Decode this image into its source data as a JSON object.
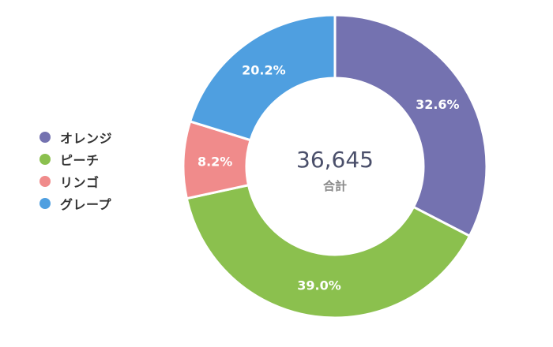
{
  "chart_data": {
    "type": "pie",
    "style": "donut",
    "categories": [
      "オレンジ",
      "ピーチ",
      "リンゴ",
      "グレープ"
    ],
    "values": [
      32.6,
      39.0,
      8.2,
      20.2
    ],
    "value_labels": [
      "32.6%",
      "39.0%",
      "8.2%",
      "20.2%"
    ],
    "colors": [
      "#7472b0",
      "#8bc04e",
      "#f08b8b",
      "#4f9fe0"
    ],
    "start_angle_deg": 0,
    "direction": "clockwise",
    "total_value": "36,645",
    "total_label": "合計",
    "legend_position": "left"
  }
}
